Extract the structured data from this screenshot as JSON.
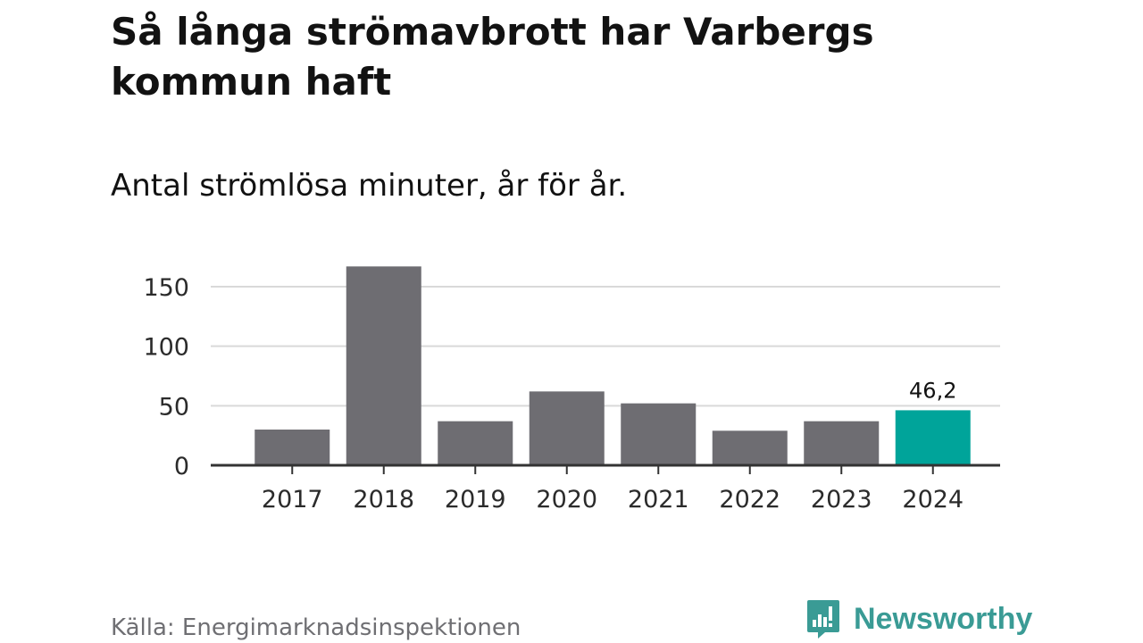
{
  "title": "Så långa strömavbrott har Varbergs kommun haft",
  "subtitle": "Antal strömlösa minuter, år för år.",
  "source": "Källa: Energimarknadsinspektionen",
  "brand": {
    "name": "Newsworthy",
    "icon": "newsworthy-logo-icon"
  },
  "colors": {
    "bar": "#6e6d72",
    "highlight": "#00a49a",
    "grid": "#d9d9d9",
    "axis": "#333333",
    "brand": "#3a9b95"
  },
  "chart_data": {
    "type": "bar",
    "title": "Så långa strömavbrott har Varbergs kommun haft",
    "subtitle": "Antal strömlösa minuter, år för år.",
    "xlabel": "",
    "ylabel": "",
    "categories": [
      "2017",
      "2018",
      "2019",
      "2020",
      "2021",
      "2022",
      "2023",
      "2024"
    ],
    "values": [
      30,
      167,
      37,
      62,
      52,
      29,
      37,
      46.2
    ],
    "highlight_index": 7,
    "highlight_label": "46,2",
    "ylim": [
      0,
      170
    ],
    "yticks": [
      0,
      50,
      100,
      150
    ],
    "ytick_labels": [
      "0",
      "50",
      "100",
      "150"
    ],
    "grid": true,
    "legend": "none"
  }
}
